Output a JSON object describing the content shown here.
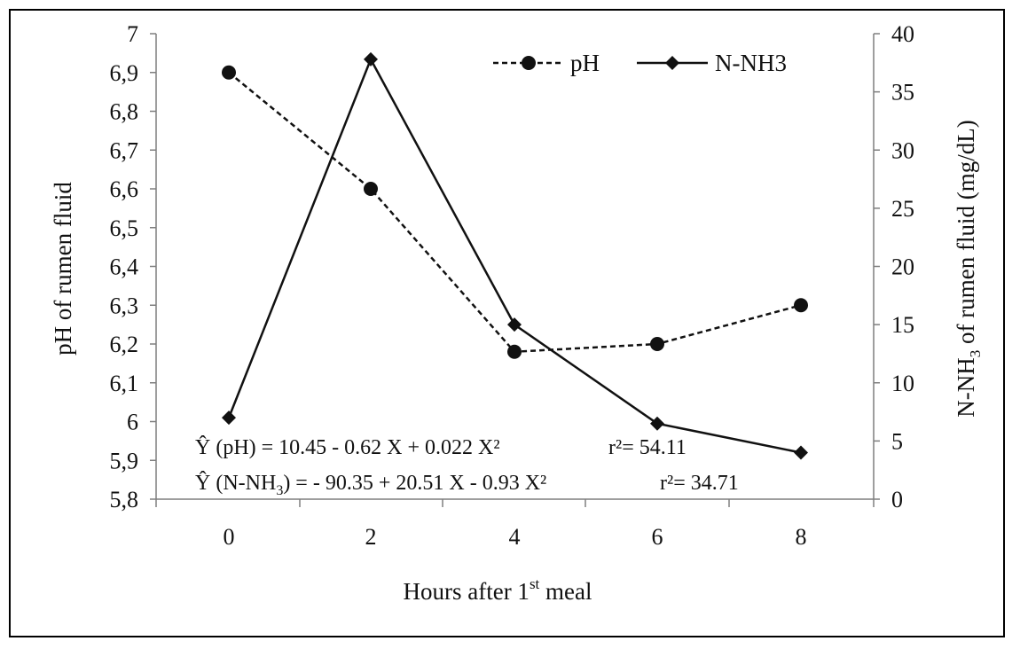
{
  "chart_data": {
    "type": "line",
    "x": [
      0,
      2,
      4,
      6,
      8
    ],
    "xlabel_main": "Hours after 1",
    "xlabel_sup": "st",
    "xlabel_end": " meal",
    "ylabel": "pH of rumen fluid",
    "y2label_pre": "N-NH",
    "y2label_sub": "3",
    "y2label_post": " of rumen fluid (mg/dL)",
    "ylim": [
      5.8,
      7.0
    ],
    "y2lim": [
      0,
      40
    ],
    "yticks": [
      "5,8",
      "5,9",
      "6",
      "6,1",
      "6,2",
      "6,3",
      "6,4",
      "6,5",
      "6,6",
      "6,7",
      "6,8",
      "6,9",
      "7"
    ],
    "y2ticks": [
      "0",
      "5",
      "10",
      "15",
      "20",
      "25",
      "30",
      "35",
      "40"
    ],
    "xticks": [
      "0",
      "2",
      "4",
      "6",
      "8"
    ],
    "legend_placement": "top-right",
    "series": [
      {
        "name": "pH",
        "axis": "left",
        "style": "dashed",
        "marker": "circle",
        "values": [
          6.9,
          6.6,
          6.18,
          6.2,
          6.3
        ]
      },
      {
        "name": "N-NH3",
        "axis": "right",
        "style": "solid",
        "marker": "diamond",
        "values": [
          7.0,
          37.8,
          15.0,
          6.5,
          4.0
        ]
      }
    ],
    "equations": [
      {
        "lhs": "Ŷ (pH) = 10.45 - 0.62 X + 0.022 X²",
        "r2": "r²= 54.11"
      },
      {
        "lhs_pre": "Ŷ (N-NH",
        "lhs_sub": "3",
        "lhs_post": ") = - 90.35 + 20.51 X - 0.93 X²",
        "r2": "r²= 34.71"
      }
    ]
  }
}
